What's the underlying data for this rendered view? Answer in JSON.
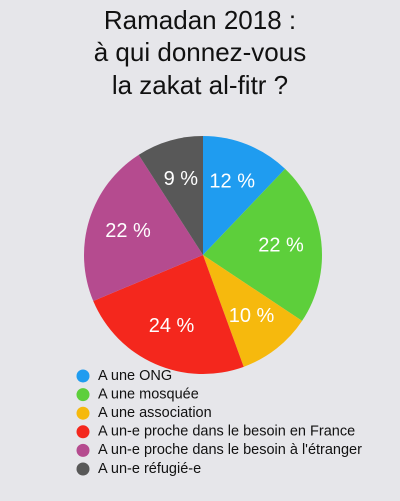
{
  "chart_data": {
    "type": "pie",
    "title": [
      "Ramadan 2018 :",
      "à qui donnez-vous",
      "la zakat al-fitr ?"
    ],
    "categories": [
      "A une ONG",
      "A une mosquée",
      "A une association",
      "A un-e proche dans le besoin en France",
      "A un-e proche dans le besoin à l'étranger",
      "A un-e réfugié-e"
    ],
    "values": [
      12,
      22,
      10,
      24,
      22,
      9
    ],
    "value_labels": [
      "12 %",
      "22 %",
      "10 %",
      "24 %",
      "22 %",
      "9 %"
    ],
    "colors": [
      "#1f9cf0",
      "#5dcf3b",
      "#f6b90d",
      "#f4271d",
      "#b54b8f",
      "#585858"
    ]
  }
}
